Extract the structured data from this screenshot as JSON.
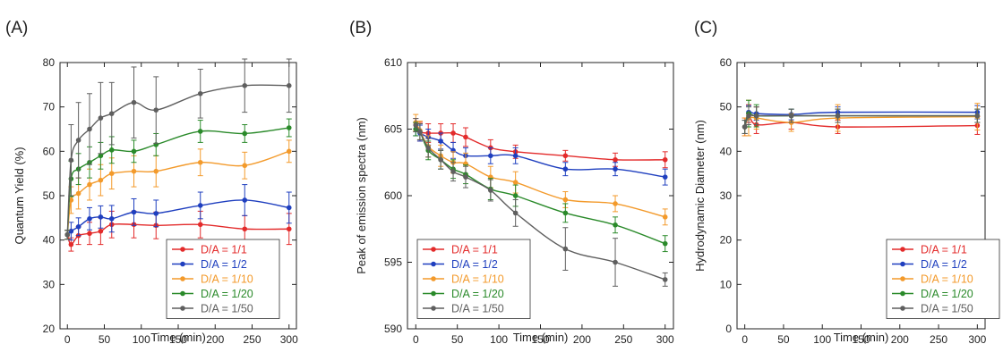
{
  "chart_data": [
    {
      "type": "line",
      "panel_label": "(A)",
      "xlabel": "Time  (min)",
      "ylabel": "Quantum Yield  (%)",
      "xlim": [
        -10,
        310
      ],
      "ylim": [
        20,
        80
      ],
      "xticks": [
        0,
        50,
        100,
        150,
        200,
        250,
        300
      ],
      "yticks": [
        20,
        30,
        40,
        50,
        60,
        70,
        80
      ],
      "legend_position": "bottom-right",
      "grid": false,
      "x": [
        0,
        5,
        15,
        30,
        45,
        60,
        90,
        120,
        180,
        240,
        300
      ],
      "series": [
        {
          "name": "D/A = 1/1",
          "color": "#e32b2b",
          "values": [
            41.2,
            39.0,
            41.0,
            41.5,
            42.0,
            43.5,
            43.5,
            43.3,
            43.5,
            42.5,
            42.5
          ],
          "errors": [
            1.0,
            1.5,
            2.0,
            2.5,
            3.0,
            3.0,
            3.0,
            3.0,
            3.0,
            3.0,
            3.5
          ]
        },
        {
          "name": "D/A = 1/2",
          "color": "#1f3fbf",
          "values": [
            41.2,
            42.0,
            43.0,
            44.8,
            45.2,
            44.8,
            46.3,
            46.0,
            47.8,
            49.0,
            47.3
          ],
          "errors": [
            1.0,
            2.0,
            2.0,
            2.5,
            2.5,
            3.0,
            3.0,
            3.0,
            3.0,
            3.5,
            3.5
          ]
        },
        {
          "name": "D/A = 1/10",
          "color": "#f39a2b",
          "values": [
            41.2,
            49.0,
            50.5,
            52.5,
            53.5,
            55.0,
            55.5,
            55.5,
            57.5,
            56.8,
            60.0
          ],
          "errors": [
            1.0,
            3.0,
            3.5,
            3.5,
            3.5,
            3.5,
            3.5,
            3.5,
            3.0,
            3.0,
            2.5
          ]
        },
        {
          "name": "D/A = 1/20",
          "color": "#2a8a2a",
          "values": [
            41.2,
            53.8,
            56.0,
            57.5,
            59.0,
            60.3,
            60.0,
            61.5,
            64.5,
            64.0,
            65.3
          ],
          "errors": [
            1.0,
            4.0,
            3.5,
            3.5,
            3.0,
            3.0,
            2.5,
            2.5,
            2.5,
            2.0,
            2.0
          ]
        },
        {
          "name": "D/A = 1/50",
          "color": "#5f5f5f",
          "values": [
            41.2,
            58.0,
            62.5,
            65.0,
            67.5,
            68.5,
            71.0,
            69.3,
            73.0,
            74.8,
            74.8
          ],
          "errors": [
            1.0,
            8.0,
            8.5,
            8.0,
            8.0,
            7.0,
            8.0,
            7.5,
            5.5,
            6.0,
            6.0
          ]
        }
      ]
    },
    {
      "type": "line",
      "panel_label": "(B)",
      "xlabel": "Time  (min)",
      "ylabel": "Peak of emission spectra  (nm)",
      "xlim": [
        -10,
        310
      ],
      "ylim": [
        590,
        610
      ],
      "xticks": [
        0,
        50,
        100,
        150,
        200,
        250,
        300
      ],
      "yticks": [
        590,
        595,
        600,
        605,
        610
      ],
      "legend_position": "bottom-left",
      "grid": false,
      "x": [
        0,
        5,
        15,
        30,
        45,
        60,
        90,
        120,
        180,
        240,
        300
      ],
      "series": [
        {
          "name": "D/A = 1/1",
          "color": "#e32b2b",
          "values": [
            605.3,
            604.8,
            604.7,
            604.7,
            604.7,
            604.4,
            603.6,
            603.3,
            603.0,
            602.7,
            602.7
          ],
          "errors": [
            0.5,
            0.7,
            0.7,
            0.7,
            0.7,
            0.7,
            0.6,
            0.5,
            0.4,
            0.5,
            0.6
          ]
        },
        {
          "name": "D/A = 1/2",
          "color": "#1f3fbf",
          "values": [
            605.0,
            604.7,
            604.4,
            604.1,
            603.4,
            603.0,
            603.0,
            603.0,
            602.0,
            602.0,
            601.4
          ],
          "errors": [
            0.5,
            0.6,
            0.6,
            0.6,
            0.6,
            0.6,
            0.6,
            0.6,
            0.5,
            0.5,
            0.6
          ]
        },
        {
          "name": "D/A = 1/10",
          "color": "#f39a2b",
          "values": [
            605.5,
            604.9,
            603.7,
            603.0,
            602.5,
            602.4,
            601.4,
            601.0,
            599.7,
            599.4,
            598.4
          ],
          "errors": [
            0.6,
            0.7,
            0.8,
            0.8,
            0.8,
            0.8,
            0.8,
            0.8,
            0.6,
            0.6,
            0.6
          ]
        },
        {
          "name": "D/A = 1/20",
          "color": "#2a8a2a",
          "values": [
            605.0,
            604.8,
            603.4,
            602.7,
            602.0,
            601.6,
            600.5,
            600.0,
            598.7,
            597.8,
            596.4
          ],
          "errors": [
            0.5,
            0.6,
            0.7,
            0.7,
            0.7,
            0.7,
            0.8,
            0.8,
            0.7,
            0.6,
            0.6
          ]
        },
        {
          "name": "D/A = 1/50",
          "color": "#5f5f5f",
          "values": [
            605.3,
            604.8,
            603.6,
            602.7,
            601.8,
            601.4,
            600.4,
            598.7,
            596.0,
            595.0,
            593.7
          ],
          "errors": [
            0.5,
            0.6,
            0.7,
            0.7,
            0.7,
            0.8,
            0.8,
            1.0,
            1.6,
            1.8,
            0.5
          ]
        }
      ]
    },
    {
      "type": "line",
      "panel_label": "(C)",
      "xlabel": "Time  (min)",
      "ylabel": "Hydrodynamic Diameter  (nm)",
      "xlim": [
        -10,
        310
      ],
      "ylim": [
        0,
        60
      ],
      "xticks": [
        0,
        50,
        100,
        150,
        200,
        250,
        300
      ],
      "yticks": [
        0,
        10,
        20,
        30,
        40,
        50,
        60
      ],
      "legend_position": "bottom-right",
      "grid": false,
      "x": [
        0,
        5,
        15,
        60,
        120,
        300
      ],
      "series": [
        {
          "name": "D/A = 1/1",
          "color": "#e32b2b",
          "values": [
            45.5,
            48.5,
            46.0,
            46.5,
            45.5,
            45.8
          ],
          "errors": [
            2.0,
            2.0,
            2.0,
            1.5,
            1.5,
            2.0
          ]
        },
        {
          "name": "D/A = 1/2",
          "color": "#1f3fbf",
          "values": [
            45.5,
            48.8,
            48.5,
            48.3,
            48.8,
            48.8
          ],
          "errors": [
            1.5,
            1.5,
            1.5,
            1.2,
            1.2,
            1.5
          ]
        },
        {
          "name": "D/A = 1/10",
          "color": "#f39a2b",
          "values": [
            45.5,
            47.5,
            47.5,
            46.5,
            47.5,
            47.8
          ],
          "errors": [
            2.0,
            4.0,
            2.5,
            2.0,
            3.0,
            3.0
          ]
        },
        {
          "name": "D/A = 1/20",
          "color": "#2a8a2a",
          "values": [
            45.5,
            48.5,
            48.0,
            48.0,
            48.0,
            48.0
          ],
          "errors": [
            1.5,
            3.0,
            2.5,
            1.5,
            1.5,
            1.5
          ]
        },
        {
          "name": "D/A = 1/50",
          "color": "#5f5f5f",
          "values": [
            45.5,
            48.0,
            48.0,
            48.0,
            48.0,
            48.0
          ],
          "errors": [
            1.5,
            2.0,
            2.0,
            1.5,
            1.5,
            1.5
          ]
        }
      ]
    }
  ]
}
